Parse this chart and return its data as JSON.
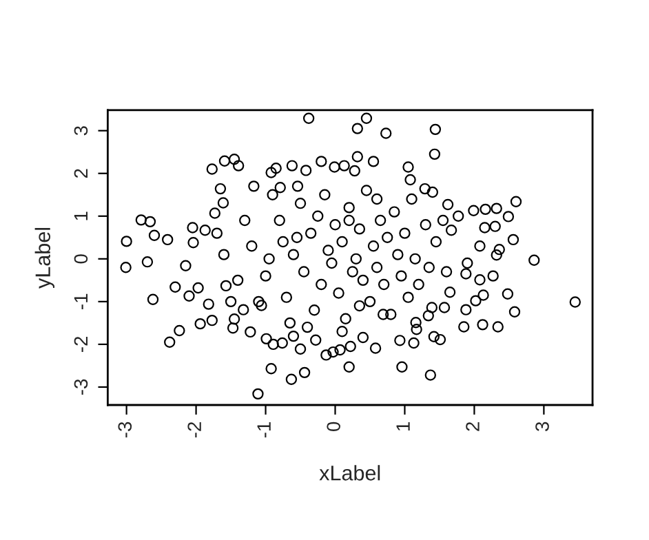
{
  "chart_data": {
    "type": "scatter",
    "xlabel": "xLabel",
    "ylabel": "yLabel",
    "xlim": [
      -3.27,
      3.7
    ],
    "ylim": [
      -3.42,
      3.48
    ],
    "xticks": [
      -3,
      -2,
      -1,
      0,
      1,
      2,
      3
    ],
    "yticks": [
      -3,
      -2,
      -1,
      0,
      1,
      2,
      3
    ],
    "grid": false,
    "marker": "circle",
    "series": [
      {
        "color": "#000000",
        "x": [
          -0.38,
          -1.77,
          -1.59,
          -1.45,
          -1.39,
          -1.65,
          -2.79,
          -2.66,
          -3.0,
          -2.6,
          -2.41,
          -2.05,
          -1.87,
          -0.92,
          -0.85,
          -0.62,
          -0.42,
          -0.2,
          -0.01,
          0.13,
          -1.17,
          -0.79,
          -0.54,
          -1.73,
          -1.61,
          -2.04,
          -2.7,
          0.45,
          0.32,
          0.73,
          1.44,
          1.43,
          0.32,
          0.55,
          1.05,
          0.28,
          1.08,
          1.29,
          1.4,
          1.62,
          1.99,
          2.16,
          2.32,
          2.6,
          2.49,
          1.77,
          2.15,
          2.3,
          2.56,
          2.08,
          2.36,
          2.32,
          2.86,
          1.67,
          3.45,
          2.48,
          2.58,
          2.34,
          2.12,
          1.85,
          2.27,
          2.08,
          2.13,
          2.02,
          1.88,
          1.37,
          0.96,
          0.2,
          1.51,
          1.42,
          1.13,
          0.93,
          0.58,
          0.22,
          0.07,
          1.65,
          1.57,
          1.39,
          1.34,
          1.16,
          1.17,
          1.88,
          1.9,
          0.69,
          0.4,
          -3.01,
          -2.15,
          -2.62,
          -2.3,
          -2.38,
          -2.24,
          -1.94,
          -2.1,
          -1.97,
          -1.82,
          -1.77,
          -1.57,
          -1.45,
          -1.47,
          -1.11,
          -0.92,
          -0.63,
          -0.44,
          -0.89,
          -0.76,
          -0.5,
          -0.6,
          -0.99,
          -1.22,
          -0.28,
          -0.13,
          -0.03,
          -1.06,
          -1.32,
          -1.2,
          -1.0,
          -0.8,
          -0.7,
          -0.6,
          -0.5,
          -0.45,
          -0.35,
          -0.3,
          -0.25,
          -0.2,
          -0.1,
          -0.05,
          0.0,
          0.05,
          0.1,
          0.15,
          0.2,
          0.25,
          0.3,
          0.35,
          0.4,
          0.45,
          0.5,
          0.55,
          0.6,
          0.65,
          0.7,
          0.75,
          0.8,
          0.85,
          0.9,
          0.95,
          1.0,
          1.05,
          1.1,
          1.15,
          1.2,
          1.3,
          1.35,
          1.45,
          -1.4,
          -1.3,
          -1.1,
          -0.9,
          -0.95,
          -0.65,
          -0.55,
          -0.15,
          0.1,
          -1.6,
          -1.5,
          -0.4,
          0.6,
          1.6,
          1.55,
          -1.7,
          -0.75,
          0.35,
          0.2
        ],
        "values": [
          3.29,
          2.1,
          2.29,
          2.33,
          2.18,
          1.64,
          0.91,
          0.87,
          0.41,
          0.55,
          0.45,
          0.73,
          0.67,
          2.02,
          2.12,
          2.18,
          2.07,
          2.28,
          2.15,
          2.18,
          1.7,
          1.67,
          1.7,
          1.07,
          1.31,
          0.38,
          -0.07,
          3.29,
          3.05,
          2.94,
          3.03,
          2.45,
          2.39,
          2.28,
          2.15,
          2.06,
          1.85,
          1.64,
          1.56,
          1.27,
          1.13,
          1.16,
          1.18,
          1.34,
          0.99,
          1.0,
          0.73,
          0.76,
          0.45,
          0.3,
          0.22,
          0.09,
          -0.03,
          0.67,
          -1.01,
          -0.82,
          -1.24,
          -1.59,
          -1.54,
          -1.59,
          -0.4,
          -0.49,
          -0.85,
          -0.98,
          -1.19,
          -2.72,
          -2.53,
          -2.53,
          -1.89,
          -1.82,
          -1.97,
          -1.91,
          -2.09,
          -2.05,
          -2.13,
          -0.78,
          -1.14,
          -1.14,
          -1.33,
          -1.49,
          -1.65,
          -0.35,
          -0.1,
          -1.3,
          -1.84,
          -0.2,
          -0.16,
          -0.95,
          -0.66,
          -1.95,
          -1.68,
          -1.52,
          -0.87,
          -0.68,
          -1.06,
          -1.44,
          -0.63,
          -1.41,
          -1.62,
          -3.16,
          -2.57,
          -2.82,
          -2.66,
          -2.0,
          -1.97,
          -2.11,
          -1.81,
          -1.87,
          -1.71,
          -1.9,
          -2.25,
          -2.18,
          -1.09,
          -1.19,
          0.3,
          -0.4,
          0.9,
          -0.9,
          0.1,
          1.3,
          -0.3,
          0.6,
          -1.2,
          1.0,
          -0.6,
          0.2,
          -0.1,
          0.8,
          -0.8,
          0.4,
          -1.4,
          1.2,
          -0.3,
          0.0,
          0.7,
          -0.5,
          1.6,
          -1.0,
          0.3,
          -0.2,
          0.9,
          -0.6,
          0.5,
          -1.3,
          1.1,
          0.1,
          -0.4,
          0.6,
          -0.9,
          1.4,
          0.0,
          -0.6,
          0.8,
          -0.2,
          0.4,
          -0.5,
          0.9,
          -1.0,
          1.5,
          0.0,
          -1.5,
          0.5,
          1.5,
          -1.7,
          0.1,
          -1.0,
          -1.6,
          1.4,
          -0.3,
          0.9,
          0.6,
          0.4,
          -1.1,
          0.9
        ]
      }
    ]
  }
}
